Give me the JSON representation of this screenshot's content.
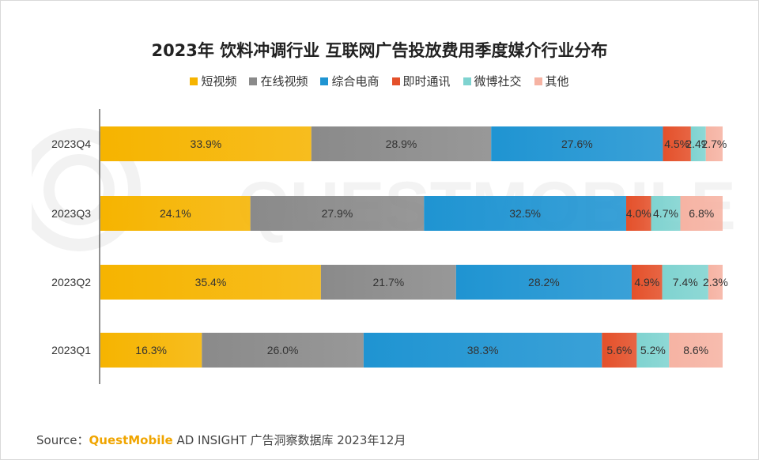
{
  "chart_data": {
    "type": "bar",
    "orientation": "horizontal",
    "stacked": true,
    "title": "2023年 饮料冲调行业 互联网广告投放费用季度媒介行业分布",
    "categories": [
      "2023Q4",
      "2023Q3",
      "2023Q2",
      "2023Q1"
    ],
    "series": [
      {
        "name": "短视频",
        "color": "#f6b400",
        "values": [
          33.9,
          24.1,
          35.4,
          16.3
        ]
      },
      {
        "name": "在线视频",
        "color": "#8a8a8a",
        "values": [
          28.9,
          27.9,
          21.7,
          26.0
        ]
      },
      {
        "name": "综合电商",
        "color": "#1f94d2",
        "values": [
          27.6,
          32.5,
          28.2,
          38.3
        ]
      },
      {
        "name": "即时通讯",
        "color": "#e4502a",
        "values": [
          4.5,
          4.0,
          4.9,
          5.6
        ]
      },
      {
        "name": "微博社交",
        "color": "#7fd3d0",
        "values": [
          2.4,
          4.7,
          7.4,
          5.2
        ]
      },
      {
        "name": "其他",
        "color": "#f6b3a3",
        "values": [
          2.7,
          6.8,
          2.3,
          8.6
        ]
      }
    ],
    "value_suffix": "%",
    "legend_position": "top",
    "grid": false
  },
  "source": {
    "prefix": "Source：",
    "brand": "QuestMobile",
    "text": " AD INSIGHT 广告洞察数据库 2023年12月"
  }
}
